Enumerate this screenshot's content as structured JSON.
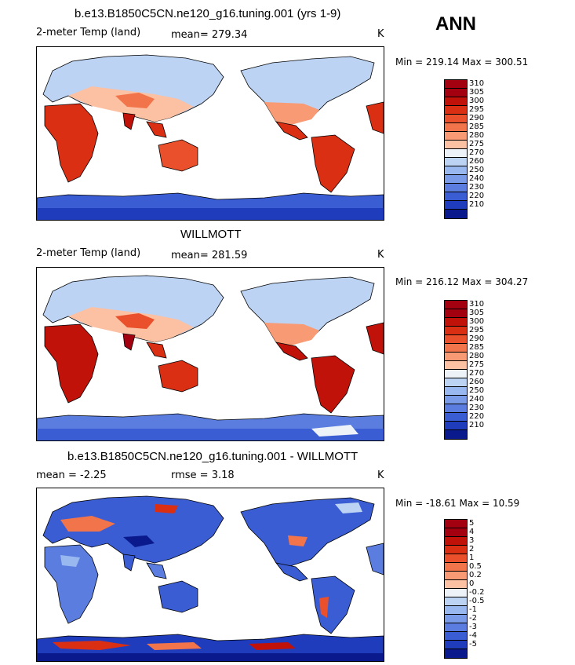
{
  "season": "ANN",
  "panels": [
    {
      "title": "b.e13.B1850C5CN.ne120_g16.tuning.001 (yrs 1-9)",
      "left_label": "2-meter Temp (land)",
      "mid_label": "mean= 279.34",
      "units": "K",
      "minmax": "Min = 219.14 Max = 300.51",
      "levels": [
        "310",
        "305",
        "300",
        "295",
        "290",
        "285",
        "280",
        "275",
        "270",
        "260",
        "250",
        "240",
        "230",
        "220",
        "210"
      ],
      "colors": [
        "#a30010",
        "#c1120a",
        "#db2f14",
        "#e9502b",
        "#f2744a",
        "#f89b74",
        "#fcc0a3",
        "#ecf2f8",
        "#bcd3f4",
        "#99b8ef",
        "#7a9ce8",
        "#5a7ddf",
        "#3b5dd3",
        "#1f3cbd",
        "#0a1a8c"
      ]
    },
    {
      "title": "WILLMOTT",
      "left_label": "2-meter Temp (land)",
      "mid_label": "mean= 281.59",
      "units": "K",
      "minmax": "Min = 216.12 Max = 304.27",
      "levels": [
        "310",
        "305",
        "300",
        "295",
        "290",
        "285",
        "280",
        "275",
        "270",
        "260",
        "250",
        "240",
        "230",
        "220",
        "210"
      ],
      "colors": [
        "#a30010",
        "#c1120a",
        "#db2f14",
        "#e9502b",
        "#f2744a",
        "#f89b74",
        "#fcc0a3",
        "#ecf2f8",
        "#bcd3f4",
        "#99b8ef",
        "#7a9ce8",
        "#5a7ddf",
        "#3b5dd3",
        "#1f3cbd",
        "#0a1a8c"
      ]
    },
    {
      "title": "b.e13.B1850C5CN.ne120_g16.tuning.001 - WILLMOTT",
      "left_label": "mean =   -2.25",
      "mid_label": "rmse =    3.18",
      "units": "K",
      "minmax": "Min = -18.61 Max =  10.59",
      "levels": [
        "5",
        "4",
        "3",
        "2",
        "1",
        "0.5",
        "0.2",
        "0",
        "-0.2",
        "-0.5",
        "-1",
        "-2",
        "-3",
        "-4",
        "-5"
      ],
      "colors": [
        "#a30010",
        "#c1120a",
        "#db2f14",
        "#e9502b",
        "#f2744a",
        "#f89b74",
        "#fcc0a3",
        "#ecf2f8",
        "#bcd3f4",
        "#99b8ef",
        "#7a9ce8",
        "#5a7ddf",
        "#3b5dd3",
        "#1f3cbd",
        "#0a1a8c"
      ]
    }
  ]
}
